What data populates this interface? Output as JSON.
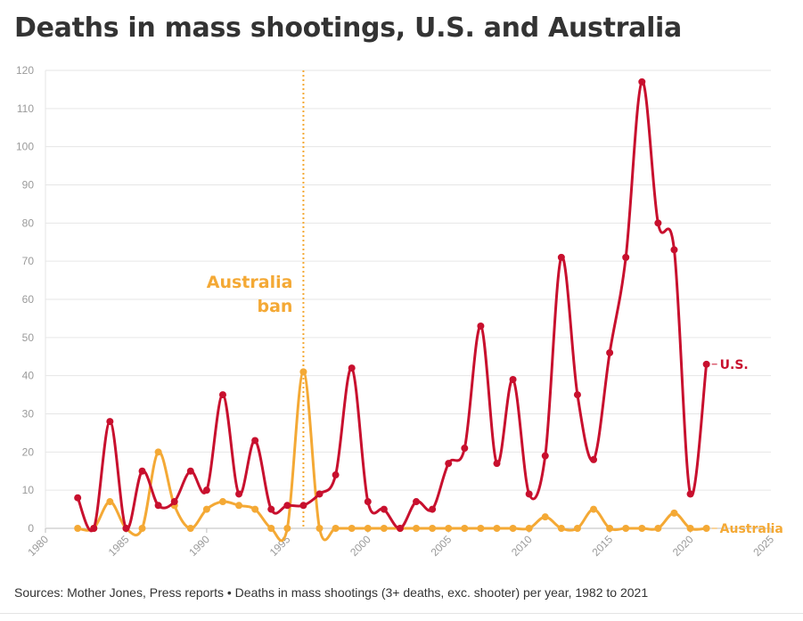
{
  "title": "Deaths in mass shootings, U.S. and Australia",
  "footer": {
    "text": "Sources: Mother Jones, Press reports • Deaths in mass shootings (3+ deaths, exc. shooter) per year, 1982 to 2021"
  },
  "chart_data": {
    "type": "line",
    "x": [
      1982,
      1983,
      1984,
      1985,
      1986,
      1987,
      1988,
      1989,
      1990,
      1991,
      1992,
      1993,
      1994,
      1995,
      1996,
      1997,
      1998,
      1999,
      2000,
      2001,
      2002,
      2003,
      2004,
      2005,
      2006,
      2007,
      2008,
      2009,
      2010,
      2011,
      2012,
      2013,
      2014,
      2015,
      2016,
      2017,
      2018,
      2019,
      2020,
      2021
    ],
    "series": [
      {
        "name": "U.S.",
        "color": "#c8102e",
        "values": [
          8,
          0,
          28,
          0,
          15,
          6,
          7,
          15,
          10,
          35,
          9,
          23,
          5,
          6,
          6,
          9,
          14,
          42,
          7,
          5,
          0,
          7,
          5,
          17,
          21,
          53,
          17,
          39,
          9,
          19,
          71,
          35,
          18,
          46,
          71,
          117,
          80,
          73,
          9,
          43
        ]
      },
      {
        "name": "Australia",
        "color": "#f4a935",
        "values": [
          0,
          0,
          7,
          0,
          0,
          20,
          6,
          0,
          5,
          7,
          6,
          5,
          0,
          0,
          41,
          0,
          0,
          0,
          0,
          0,
          0,
          0,
          0,
          0,
          0,
          0,
          0,
          0,
          0,
          3,
          0,
          0,
          5,
          0,
          0,
          0,
          0,
          4,
          0,
          0
        ]
      }
    ],
    "xlim": [
      1980,
      2025
    ],
    "ylim": [
      0,
      120
    ],
    "xticks": [
      "1980",
      "1985",
      "1990",
      "1995",
      "2000",
      "2005",
      "2010",
      "2015",
      "2020",
      "2025"
    ],
    "yticks": [
      "0",
      "10",
      "20",
      "30",
      "40",
      "50",
      "60",
      "70",
      "80",
      "90",
      "100",
      "110",
      "120"
    ],
    "grid": true,
    "annotation": {
      "x": 1996,
      "lines": [
        "Australia",
        "ban"
      ],
      "color": "#f4a935"
    }
  }
}
